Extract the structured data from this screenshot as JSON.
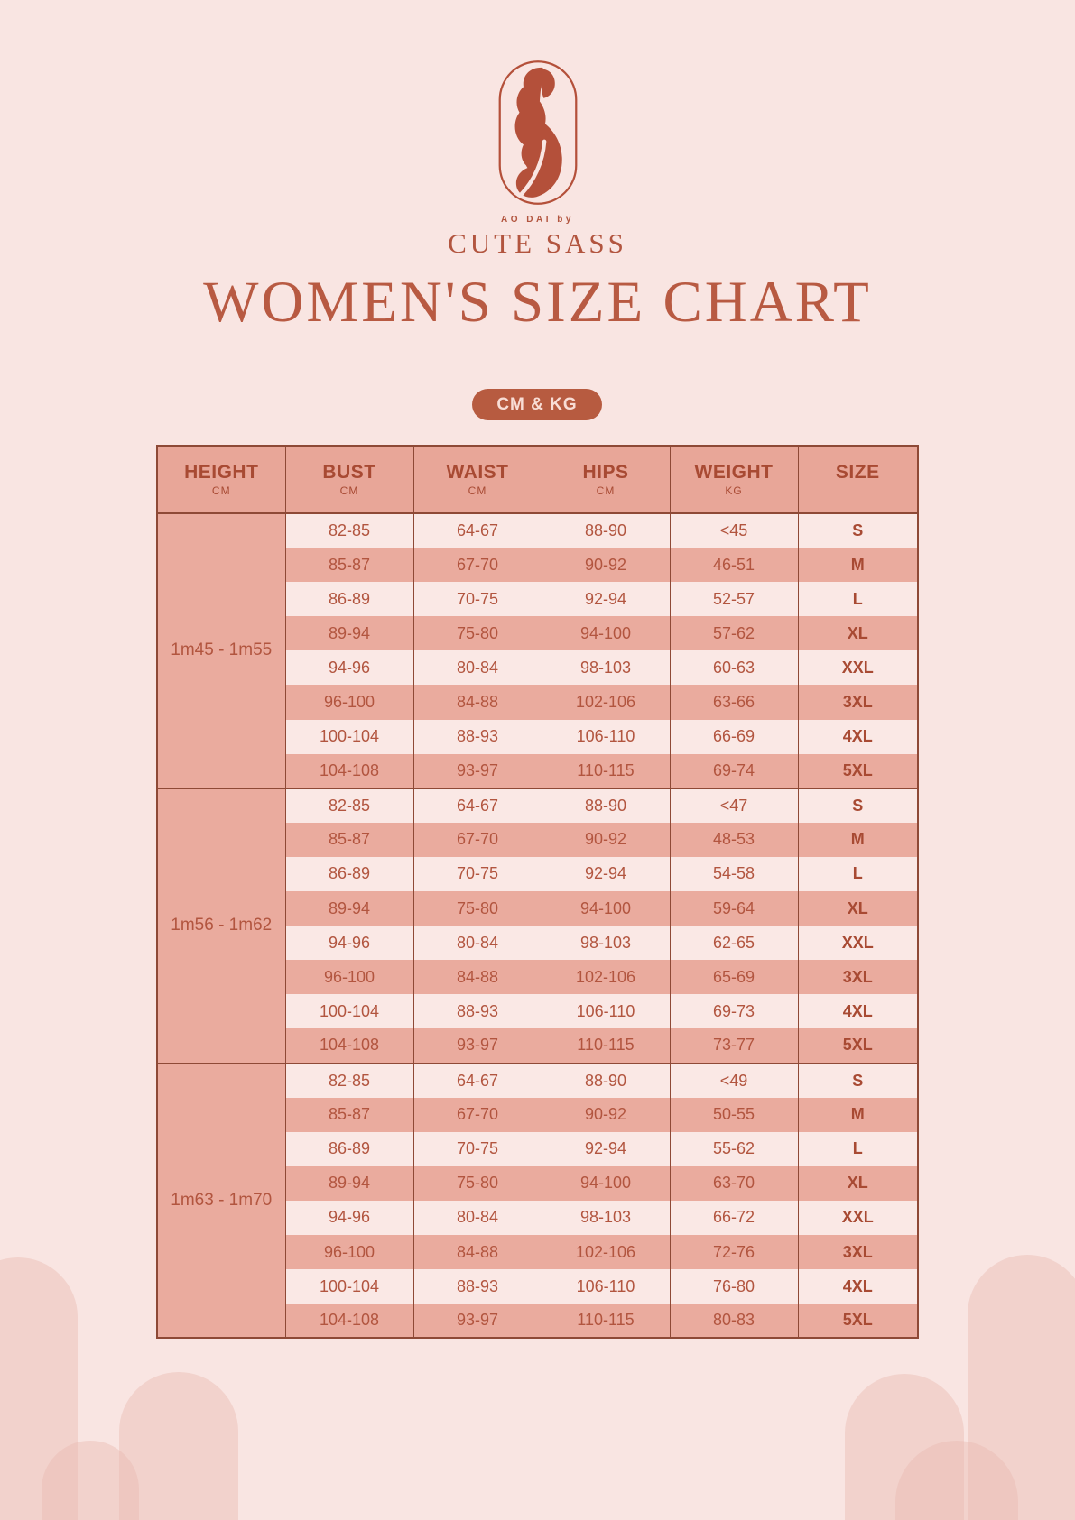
{
  "logo": {
    "tagline": "AO DAI by",
    "brand": "CUTE SASS"
  },
  "title": "WOMEN'S SIZE CHART",
  "unit_badge": "CM & KG",
  "colors": {
    "background": "#f9e5e2",
    "row_light": "#fae8e5",
    "row_dark": "#eaab9e",
    "header_pink": "#e8a698",
    "border": "#8e4936",
    "rust_text": "#b2553f",
    "title": "#b85a42",
    "pill_background": "#b75b40",
    "pill_text": "#f8ddd5"
  },
  "table": {
    "headers": [
      {
        "label": "HEIGHT",
        "unit": "CM"
      },
      {
        "label": "BUST",
        "unit": "CM"
      },
      {
        "label": "WAIST",
        "unit": "CM"
      },
      {
        "label": "HIPS",
        "unit": "CM"
      },
      {
        "label": "WEIGHT",
        "unit": "KG"
      },
      {
        "label": "SIZE",
        "unit": ""
      }
    ],
    "groups": [
      {
        "height": "1m45 - 1m55",
        "rows": [
          [
            "82-85",
            "64-67",
            "88-90",
            "<45",
            "S"
          ],
          [
            "85-87",
            "67-70",
            "90-92",
            "46-51",
            "M"
          ],
          [
            "86-89",
            "70-75",
            "92-94",
            "52-57",
            "L"
          ],
          [
            "89-94",
            "75-80",
            "94-100",
            "57-62",
            "XL"
          ],
          [
            "94-96",
            "80-84",
            "98-103",
            "60-63",
            "XXL"
          ],
          [
            "96-100",
            "84-88",
            "102-106",
            "63-66",
            "3XL"
          ],
          [
            "100-104",
            "88-93",
            "106-110",
            "66-69",
            "4XL"
          ],
          [
            "104-108",
            "93-97",
            "110-115",
            "69-74",
            "5XL"
          ]
        ]
      },
      {
        "height": "1m56 - 1m62",
        "rows": [
          [
            "82-85",
            "64-67",
            "88-90",
            "<47",
            "S"
          ],
          [
            "85-87",
            "67-70",
            "90-92",
            "48-53",
            "M"
          ],
          [
            "86-89",
            "70-75",
            "92-94",
            "54-58",
            "L"
          ],
          [
            "89-94",
            "75-80",
            "94-100",
            "59-64",
            "XL"
          ],
          [
            "94-96",
            "80-84",
            "98-103",
            "62-65",
            "XXL"
          ],
          [
            "96-100",
            "84-88",
            "102-106",
            "65-69",
            "3XL"
          ],
          [
            "100-104",
            "88-93",
            "106-110",
            "69-73",
            "4XL"
          ],
          [
            "104-108",
            "93-97",
            "110-115",
            "73-77",
            "5XL"
          ]
        ]
      },
      {
        "height": "1m63 - 1m70",
        "rows": [
          [
            "82-85",
            "64-67",
            "88-90",
            "<49",
            "S"
          ],
          [
            "85-87",
            "67-70",
            "90-92",
            "50-55",
            "M"
          ],
          [
            "86-89",
            "70-75",
            "92-94",
            "55-62",
            "L"
          ],
          [
            "89-94",
            "75-80",
            "94-100",
            "63-70",
            "XL"
          ],
          [
            "94-96",
            "80-84",
            "98-103",
            "66-72",
            "XXL"
          ],
          [
            "96-100",
            "84-88",
            "102-106",
            "72-76",
            "3XL"
          ],
          [
            "100-104",
            "88-93",
            "106-110",
            "76-80",
            "4XL"
          ],
          [
            "104-108",
            "93-97",
            "110-115",
            "80-83",
            "5XL"
          ]
        ]
      }
    ]
  }
}
